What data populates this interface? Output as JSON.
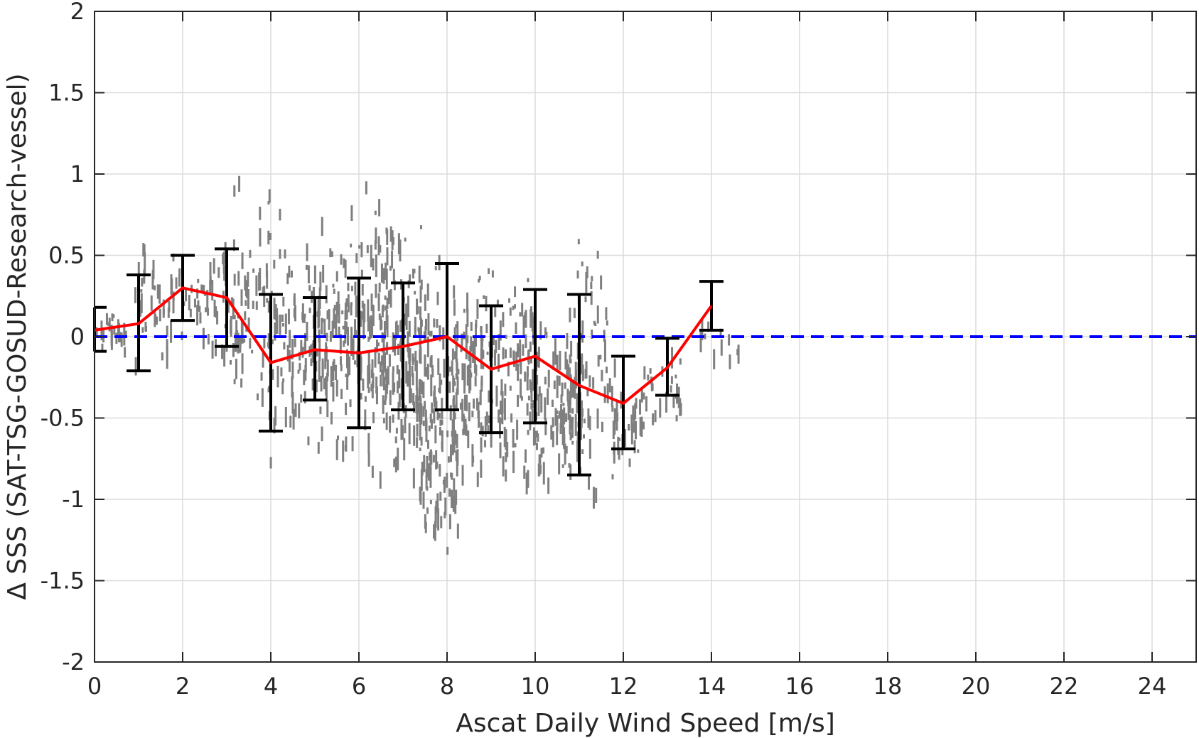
{
  "chart_data": {
    "type": "scatter",
    "xlabel": "Ascat Daily Wind Speed [m/s]",
    "ylabel": "Δ SSS (SAT-TSG-GOSUD-Research-vessel)",
    "xlim": [
      0,
      25
    ],
    "ylim": [
      -2,
      2
    ],
    "x_ticks": [
      "0",
      "2",
      "4",
      "6",
      "8",
      "10",
      "12",
      "14",
      "16",
      "18",
      "20",
      "22",
      "24"
    ],
    "y_ticks": [
      "2",
      "1.5",
      "1",
      "0.5",
      "0",
      "-0.5",
      "-1",
      "-1.5",
      "-2"
    ],
    "grid": true,
    "reference_line": {
      "y": 0,
      "style": "dashed",
      "color": "#0000ff"
    },
    "series": [
      {
        "type": "line",
        "color": "#ff0000",
        "x": [
          0,
          1,
          2,
          3,
          4,
          5,
          6,
          7,
          8,
          9,
          10,
          11,
          12,
          13,
          14
        ],
        "y": [
          0.04,
          0.08,
          0.3,
          0.24,
          -0.16,
          -0.08,
          -0.1,
          -0.06,
          0.0,
          -0.2,
          -0.12,
          -0.3,
          -0.41,
          -0.19,
          0.19
        ]
      },
      {
        "type": "errorbar",
        "color": "#000000",
        "x": [
          0,
          1,
          2,
          3,
          4,
          5,
          6,
          7,
          8,
          9,
          10,
          11,
          12,
          13,
          14
        ],
        "upper": [
          0.18,
          0.38,
          0.5,
          0.54,
          0.26,
          0.24,
          0.36,
          0.33,
          0.45,
          0.19,
          0.29,
          0.26,
          -0.12,
          -0.01,
          0.34
        ],
        "lower": [
          -0.09,
          -0.21,
          0.1,
          -0.06,
          -0.58,
          -0.39,
          -0.56,
          -0.45,
          -0.45,
          -0.59,
          -0.53,
          -0.85,
          -0.69,
          -0.36,
          0.04
        ]
      },
      {
        "type": "scatter",
        "color": "#7f7f7f",
        "x_range": [
          0,
          14.5
        ],
        "y_range": [
          -1.6,
          1.27
        ],
        "distribution": [
          {
            "x": 0.4,
            "ymin": -0.15,
            "ymax": 0.25,
            "n": 20
          },
          {
            "x": 1.3,
            "ymin": -0.25,
            "ymax": 0.74,
            "n": 35
          },
          {
            "x": 2.2,
            "ymin": -0.05,
            "ymax": 0.6,
            "n": 30
          },
          {
            "x": 3.0,
            "ymin": -0.45,
            "ymax": 0.82,
            "n": 40
          },
          {
            "x": 3.6,
            "ymin": -0.7,
            "ymax": 1.27,
            "n": 55
          },
          {
            "x": 4.4,
            "ymin": -0.9,
            "ymax": 0.9,
            "n": 75
          },
          {
            "x": 5.3,
            "ymin": -0.9,
            "ymax": 0.9,
            "n": 110
          },
          {
            "x": 6.2,
            "ymin": -1.0,
            "ymax": 1.1,
            "n": 125
          },
          {
            "x": 7.0,
            "ymin": -1.1,
            "ymax": 0.95,
            "n": 135
          },
          {
            "x": 7.8,
            "ymin": -1.6,
            "ymax": 0.65,
            "n": 150
          },
          {
            "x": 8.6,
            "ymin": -0.95,
            "ymax": 0.55,
            "n": 110
          },
          {
            "x": 9.5,
            "ymin": -1.15,
            "ymax": 0.75,
            "n": 90
          },
          {
            "x": 10.4,
            "ymin": -1.2,
            "ymax": 0.45,
            "n": 90
          },
          {
            "x": 11.2,
            "ymin": -1.25,
            "ymax": 0.88,
            "n": 80
          },
          {
            "x": 12.0,
            "ymin": -0.95,
            "ymax": -0.1,
            "n": 35
          },
          {
            "x": 12.9,
            "ymin": -0.6,
            "ymax": 0.0,
            "n": 28
          },
          {
            "x": 14.2,
            "ymin": -0.2,
            "ymax": 0.25,
            "n": 12
          }
        ]
      }
    ]
  }
}
